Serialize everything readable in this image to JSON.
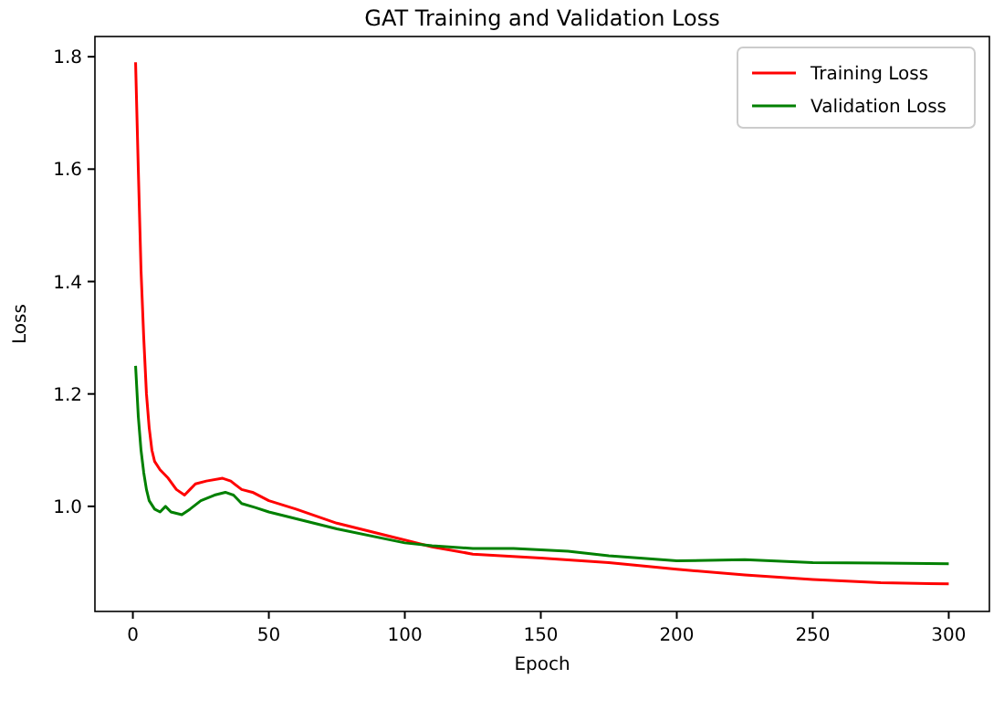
{
  "chart_data": {
    "type": "line",
    "title": "GAT Training and Validation Loss",
    "xlabel": "Epoch",
    "ylabel": "Loss",
    "xlim": [
      -13.95,
      314.95
    ],
    "ylim": [
      0.813,
      1.836
    ],
    "xticks": [
      0,
      50,
      100,
      150,
      200,
      250,
      300
    ],
    "yticks": [
      {
        "value": 1.0,
        "label": "1.0"
      },
      {
        "value": 1.2,
        "label": "1.2"
      },
      {
        "value": 1.4,
        "label": "1.4"
      },
      {
        "value": 1.6,
        "label": "1.6"
      },
      {
        "value": 1.8,
        "label": "1.8"
      }
    ],
    "legend": "top right",
    "grid": false,
    "series": [
      {
        "name": "Training Loss",
        "color": "#ff0000",
        "x": [
          1,
          2,
          3,
          4,
          5,
          6,
          7,
          8,
          10,
          13,
          16,
          19,
          21,
          23,
          27,
          33,
          36,
          40,
          44,
          50,
          60,
          75,
          100,
          110,
          125,
          150,
          175,
          200,
          225,
          250,
          275,
          300
        ],
        "values": [
          1.79,
          1.6,
          1.42,
          1.3,
          1.2,
          1.14,
          1.1,
          1.08,
          1.065,
          1.05,
          1.03,
          1.02,
          1.03,
          1.04,
          1.045,
          1.05,
          1.045,
          1.03,
          1.025,
          1.01,
          0.995,
          0.97,
          0.94,
          0.928,
          0.915,
          0.908,
          0.9,
          0.888,
          0.878,
          0.87,
          0.864,
          0.862
        ]
      },
      {
        "name": "Validation Loss",
        "color": "#008000",
        "x": [
          1,
          2,
          3,
          4,
          5,
          6,
          8,
          10,
          12,
          14,
          18,
          21,
          25,
          30,
          34,
          37,
          40,
          45,
          50,
          75,
          100,
          110,
          125,
          140,
          160,
          175,
          200,
          225,
          250,
          275,
          300
        ],
        "values": [
          1.25,
          1.16,
          1.1,
          1.06,
          1.03,
          1.01,
          0.995,
          0.99,
          1.0,
          0.99,
          0.985,
          0.995,
          1.01,
          1.02,
          1.025,
          1.02,
          1.005,
          0.998,
          0.99,
          0.96,
          0.935,
          0.93,
          0.925,
          0.925,
          0.92,
          0.912,
          0.903,
          0.905,
          0.9,
          0.899,
          0.898
        ]
      }
    ]
  }
}
